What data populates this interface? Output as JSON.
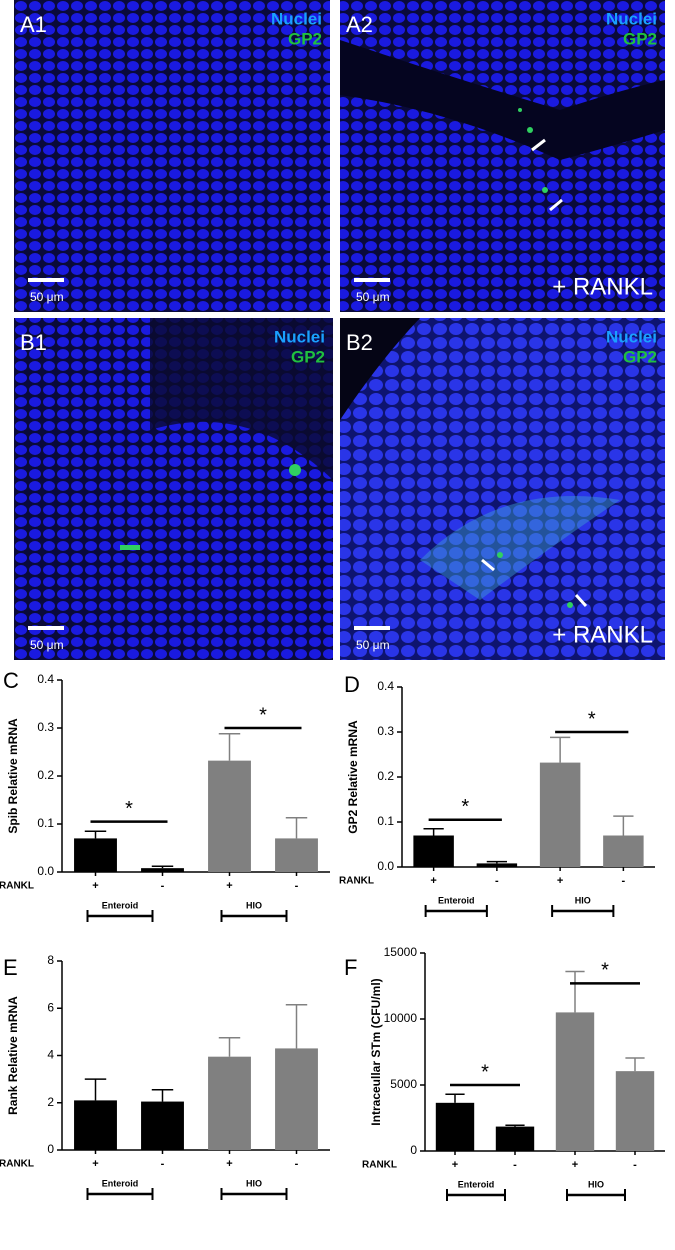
{
  "panels": [
    {
      "label": "A1",
      "stain1": "Nuclei",
      "stain2": "GP2",
      "scale": "50 μm"
    },
    {
      "label": "A2",
      "stain1": "Nuclei",
      "stain2": "GP2",
      "scale": "50 μm",
      "treatment": "+ RANKL"
    },
    {
      "label": "B1",
      "stain1": "Nuclei",
      "stain2": "GP2",
      "scale": "50 μm"
    },
    {
      "label": "B2",
      "stain1": "Nuclei",
      "stain2": "GP2",
      "scale": "50 μm",
      "treatment": "+ RANKL"
    }
  ],
  "chart_data": [
    {
      "type": "bar",
      "panel": "C",
      "ylabel": "Spib Relative mRNA",
      "row_label": "RANKL",
      "categories": [
        "+",
        "-",
        "+",
        "-"
      ],
      "values": [
        0.07,
        0.008,
        0.232,
        0.07
      ],
      "errors": [
        0.015,
        0.004,
        0.056,
        0.043
      ],
      "colors": [
        "#000000",
        "#000000",
        "#808080",
        "#808080"
      ],
      "groups": [
        {
          "label": "Enteroid",
          "range": [
            0,
            1
          ]
        },
        {
          "label": "HIO",
          "range": [
            2,
            3
          ]
        }
      ],
      "significance": [
        {
          "range": [
            0,
            1
          ],
          "y": 0.105,
          "label": "*"
        },
        {
          "range": [
            2,
            3
          ],
          "y": 0.3,
          "label": "*"
        }
      ],
      "ylim": [
        0,
        0.4
      ],
      "yticks": [
        {
          "value": 0,
          "label": "0.0"
        },
        0.1,
        0.2,
        0.3,
        0.4
      ]
    },
    {
      "type": "bar",
      "panel": "D",
      "ylabel": "GP2 Relative mRNA",
      "row_label": "RANKL",
      "categories": [
        "+",
        "-",
        "+",
        "-"
      ],
      "values": [
        0.07,
        0.008,
        0.232,
        0.07
      ],
      "errors": [
        0.015,
        0.004,
        0.056,
        0.043
      ],
      "colors": [
        "#000000",
        "#000000",
        "#808080",
        "#808080"
      ],
      "groups": [
        {
          "label": "Enteroid",
          "range": [
            0,
            1
          ]
        },
        {
          "label": "HIO",
          "range": [
            2,
            3
          ]
        }
      ],
      "significance": [
        {
          "range": [
            0,
            1
          ],
          "y": 0.105,
          "label": "*"
        },
        {
          "range": [
            2,
            3
          ],
          "y": 0.3,
          "label": "*"
        }
      ],
      "ylim": [
        0,
        0.4
      ],
      "yticks": [
        {
          "value": 0,
          "label": "0.0"
        },
        0.1,
        0.2,
        0.3,
        0.4
      ]
    },
    {
      "type": "bar",
      "panel": "E",
      "ylabel": "Rank Relative mRNA",
      "row_label": "RANKL",
      "categories": [
        "+",
        "-",
        "+",
        "-"
      ],
      "values": [
        2.1,
        2.05,
        3.95,
        4.3
      ],
      "errors": [
        0.9,
        0.5,
        0.8,
        1.85
      ],
      "colors": [
        "#000000",
        "#000000",
        "#808080",
        "#808080"
      ],
      "groups": [
        {
          "label": "Enteroid",
          "range": [
            0,
            1
          ]
        },
        {
          "label": "HIO",
          "range": [
            2,
            3
          ]
        }
      ],
      "significance": [],
      "ylim": [
        0,
        8
      ],
      "yticks": [
        0,
        2,
        4,
        6,
        8
      ]
    },
    {
      "type": "bar",
      "panel": "F",
      "ylabel": "Intraceullar STm (CFU/ml)",
      "row_label": "RANKL",
      "categories": [
        "+",
        "-",
        "+",
        "-"
      ],
      "values": [
        3650,
        1850,
        10500,
        6050
      ],
      "errors": [
        650,
        100,
        3100,
        1000
      ],
      "colors": [
        "#000000",
        "#000000",
        "#808080",
        "#808080"
      ],
      "groups": [
        {
          "label": "Enteroid",
          "range": [
            0,
            1
          ]
        },
        {
          "label": "HIO",
          "range": [
            2,
            3
          ]
        }
      ],
      "significance": [
        {
          "range": [
            0,
            1
          ],
          "y": 5000,
          "label": "*"
        },
        {
          "range": [
            2,
            3
          ],
          "y": 12700,
          "label": "*"
        }
      ],
      "ylim": [
        0,
        15000
      ],
      "yticks": [
        0,
        5000,
        10000,
        15000
      ]
    }
  ]
}
